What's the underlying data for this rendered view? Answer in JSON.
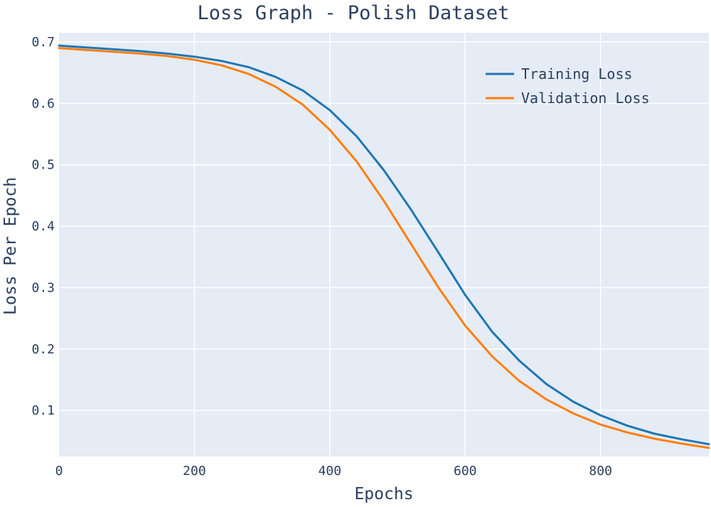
{
  "chart_data": {
    "type": "line",
    "title": "Loss Graph - Polish Dataset",
    "xlabel": "Epochs",
    "ylabel": "Loss Per Epoch",
    "xlim": [
      0,
      960
    ],
    "ylim": [
      0.025,
      0.715
    ],
    "x_ticks": [
      0,
      200,
      400,
      600,
      800
    ],
    "y_ticks": [
      0.1,
      0.2,
      0.3,
      0.4,
      0.5,
      0.6,
      0.7
    ],
    "grid": true,
    "legend_position": "top-right",
    "background": "#e5ecf6",
    "x": [
      0,
      40,
      80,
      120,
      160,
      200,
      240,
      280,
      320,
      360,
      400,
      440,
      480,
      520,
      560,
      600,
      640,
      680,
      720,
      760,
      800,
      840,
      880,
      920,
      960
    ],
    "series": [
      {
        "name": "Training Loss",
        "color": "#1f77b4",
        "values": [
          0.694,
          0.691,
          0.688,
          0.685,
          0.681,
          0.676,
          0.669,
          0.659,
          0.643,
          0.621,
          0.589,
          0.546,
          0.491,
          0.427,
          0.358,
          0.288,
          0.228,
          0.181,
          0.143,
          0.114,
          0.092,
          0.075,
          0.062,
          0.053,
          0.045
        ]
      },
      {
        "name": "Validation Loss",
        "color": "#ff7f0e",
        "values": [
          0.69,
          0.687,
          0.684,
          0.681,
          0.677,
          0.671,
          0.662,
          0.648,
          0.627,
          0.598,
          0.557,
          0.505,
          0.441,
          0.371,
          0.301,
          0.238,
          0.188,
          0.148,
          0.118,
          0.095,
          0.077,
          0.064,
          0.054,
          0.046,
          0.039
        ]
      }
    ]
  }
}
